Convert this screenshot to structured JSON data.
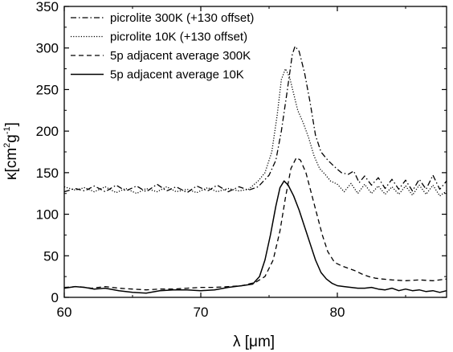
{
  "chart_data": {
    "type": "line",
    "xlabel": "λ [μm]",
    "ylabel": {
      "base": "κ[cm",
      "exp1": "2",
      "mid": "g",
      "exp2": "-1",
      "end": "]"
    },
    "xlim": [
      60,
      88
    ],
    "ylim": [
      0,
      350
    ],
    "xticks": [
      60,
      70,
      80
    ],
    "yticks": [
      0,
      50,
      100,
      150,
      200,
      250,
      300,
      350
    ],
    "grid": false,
    "legend_position": "top-left",
    "series": [
      {
        "name": "picrolite 300K (+130 offset)",
        "style": "dashdot",
        "points": [
          [
            60,
            127
          ],
          [
            60.8,
            131
          ],
          [
            61.5,
            128
          ],
          [
            62.2,
            134
          ],
          [
            63,
            127
          ],
          [
            63.8,
            135
          ],
          [
            64.5,
            128
          ],
          [
            65.3,
            134
          ],
          [
            66,
            127
          ],
          [
            66.8,
            136
          ],
          [
            67.5,
            128
          ],
          [
            68.2,
            133
          ],
          [
            69,
            126
          ],
          [
            69.7,
            134
          ],
          [
            70.5,
            128
          ],
          [
            71.2,
            135
          ],
          [
            72,
            127
          ],
          [
            72.8,
            133
          ],
          [
            73.5,
            129
          ],
          [
            74.2,
            133
          ],
          [
            75,
            147
          ],
          [
            75.5,
            165
          ],
          [
            75.9,
            200
          ],
          [
            76.3,
            245
          ],
          [
            76.7,
            292
          ],
          [
            76.9,
            302
          ],
          [
            77.2,
            296
          ],
          [
            77.6,
            270
          ],
          [
            78,
            235
          ],
          [
            78.4,
            195
          ],
          [
            78.8,
            175
          ],
          [
            79.3,
            165
          ],
          [
            79.8,
            157
          ],
          [
            80.3,
            150
          ],
          [
            80.8,
            148
          ],
          [
            81.2,
            152
          ],
          [
            81.6,
            138
          ],
          [
            82,
            146
          ],
          [
            82.5,
            135
          ],
          [
            83,
            144
          ],
          [
            83.5,
            131
          ],
          [
            84,
            142
          ],
          [
            84.5,
            130
          ],
          [
            85,
            141
          ],
          [
            85.5,
            128
          ],
          [
            86,
            142
          ],
          [
            86.5,
            130
          ],
          [
            87,
            147
          ],
          [
            87.5,
            130
          ],
          [
            88,
            140
          ]
        ]
      },
      {
        "name": "picrolite 10K (+130 offset)",
        "style": "dotted",
        "points": [
          [
            60,
            133
          ],
          [
            60.8,
            129
          ],
          [
            61.5,
            132
          ],
          [
            62.2,
            127
          ],
          [
            63,
            133
          ],
          [
            63.8,
            126
          ],
          [
            64.5,
            131
          ],
          [
            65.3,
            125
          ],
          [
            66,
            131
          ],
          [
            66.8,
            127
          ],
          [
            67.5,
            133
          ],
          [
            68.2,
            127
          ],
          [
            69,
            130
          ],
          [
            69.7,
            126
          ],
          [
            70.5,
            132
          ],
          [
            71.2,
            127
          ],
          [
            72,
            131
          ],
          [
            72.8,
            128
          ],
          [
            73.5,
            130
          ],
          [
            74.2,
            140
          ],
          [
            74.7,
            150
          ],
          [
            75.2,
            175
          ],
          [
            75.6,
            220
          ],
          [
            75.9,
            262
          ],
          [
            76.2,
            275
          ],
          [
            76.5,
            265
          ],
          [
            76.8,
            245
          ],
          [
            77.1,
            225
          ],
          [
            77.5,
            210
          ],
          [
            77.9,
            192
          ],
          [
            78.3,
            170
          ],
          [
            78.7,
            155
          ],
          [
            79.1,
            148
          ],
          [
            79.5,
            140
          ],
          [
            80,
            136
          ],
          [
            80.5,
            127
          ],
          [
            81,
            137
          ],
          [
            81.5,
            125
          ],
          [
            82,
            136
          ],
          [
            82.5,
            125
          ],
          [
            83,
            134
          ],
          [
            83.5,
            124
          ],
          [
            84,
            133
          ],
          [
            84.5,
            124
          ],
          [
            85,
            134
          ],
          [
            85.5,
            123
          ],
          [
            86,
            135
          ],
          [
            86.5,
            124
          ],
          [
            87,
            135
          ],
          [
            87.5,
            122
          ],
          [
            88,
            128
          ]
        ]
      },
      {
        "name": "5p adjacent average 300K",
        "style": "dashed",
        "points": [
          [
            60,
            12
          ],
          [
            61,
            13
          ],
          [
            62,
            11
          ],
          [
            63,
            13
          ],
          [
            64,
            11
          ],
          [
            65,
            10
          ],
          [
            66,
            9
          ],
          [
            67,
            10
          ],
          [
            68,
            10
          ],
          [
            69,
            11
          ],
          [
            70,
            12
          ],
          [
            71,
            12
          ],
          [
            72,
            13
          ],
          [
            73,
            14
          ],
          [
            74,
            18
          ],
          [
            74.7,
            25
          ],
          [
            75.3,
            45
          ],
          [
            75.8,
            80
          ],
          [
            76.2,
            120
          ],
          [
            76.6,
            155
          ],
          [
            77,
            168
          ],
          [
            77.3,
            165
          ],
          [
            77.7,
            150
          ],
          [
            78.1,
            125
          ],
          [
            78.5,
            100
          ],
          [
            78.9,
            75
          ],
          [
            79.3,
            55
          ],
          [
            79.8,
            42
          ],
          [
            80.3,
            38
          ],
          [
            80.8,
            35
          ],
          [
            81.3,
            32
          ],
          [
            81.8,
            28
          ],
          [
            82.3,
            25
          ],
          [
            82.8,
            23
          ],
          [
            83.3,
            22
          ],
          [
            84,
            21
          ],
          [
            85,
            20
          ],
          [
            86,
            21
          ],
          [
            87,
            20
          ],
          [
            88,
            22
          ]
        ]
      },
      {
        "name": "5p adjacent average 10K",
        "style": "solid",
        "points": [
          [
            60,
            11
          ],
          [
            60.8,
            13
          ],
          [
            61.5,
            12
          ],
          [
            62.2,
            10
          ],
          [
            63,
            11
          ],
          [
            64,
            8
          ],
          [
            65,
            6
          ],
          [
            66,
            5
          ],
          [
            67,
            8
          ],
          [
            68,
            9
          ],
          [
            69,
            9
          ],
          [
            70,
            8
          ],
          [
            71,
            9
          ],
          [
            72,
            12
          ],
          [
            73,
            14
          ],
          [
            73.8,
            16
          ],
          [
            74.3,
            25
          ],
          [
            74.7,
            45
          ],
          [
            75.1,
            75
          ],
          [
            75.5,
            110
          ],
          [
            75.8,
            132
          ],
          [
            76.1,
            140
          ],
          [
            76.4,
            135
          ],
          [
            76.8,
            122
          ],
          [
            77.2,
            105
          ],
          [
            77.6,
            85
          ],
          [
            78,
            65
          ],
          [
            78.4,
            45
          ],
          [
            78.8,
            30
          ],
          [
            79.2,
            22
          ],
          [
            79.6,
            17
          ],
          [
            80,
            14
          ],
          [
            80.5,
            13
          ],
          [
            81,
            12
          ],
          [
            81.5,
            11
          ],
          [
            82,
            11
          ],
          [
            82.5,
            12
          ],
          [
            83,
            10
          ],
          [
            83.5,
            9
          ],
          [
            84,
            11
          ],
          [
            84.5,
            8
          ],
          [
            85,
            10
          ],
          [
            85.5,
            8
          ],
          [
            86,
            9
          ],
          [
            86.5,
            7
          ],
          [
            87,
            8
          ],
          [
            87.5,
            6
          ],
          [
            88,
            8
          ]
        ]
      }
    ]
  }
}
